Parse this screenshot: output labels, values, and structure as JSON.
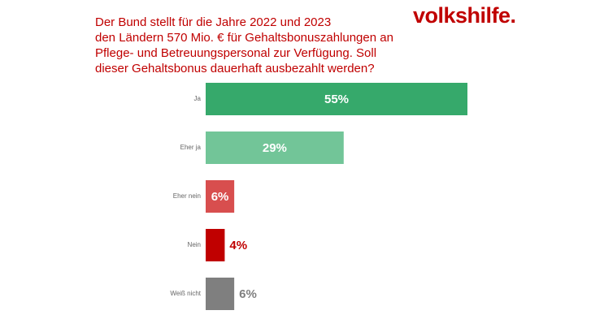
{
  "chart_data": {
    "type": "hbar",
    "title": "Der Bund stellt für die Jahre 2022 und 2023\nden Ländern 570 Mio. € für Gehaltsbonuszahlungen an\nPflege- und Betreuungspersonal zur Verfügung. Soll\ndieser Gehaltsbonus dauerhaft ausbezahlt werden?",
    "logo": "volkshilfe.",
    "categories": [
      "Ja",
      "Eher ja",
      "Eher nein",
      "Nein",
      "Weiß nicht"
    ],
    "values": [
      55,
      29,
      6,
      4,
      6
    ],
    "value_labels": [
      "55%",
      "29%",
      "6%",
      "4%",
      "6%"
    ],
    "colors": [
      "#36a96b",
      "#72c598",
      "#d84e4e",
      "#c00000",
      "#7f7f7f"
    ],
    "label_positions": [
      "inside",
      "inside",
      "inside",
      "outside",
      "outside"
    ]
  }
}
